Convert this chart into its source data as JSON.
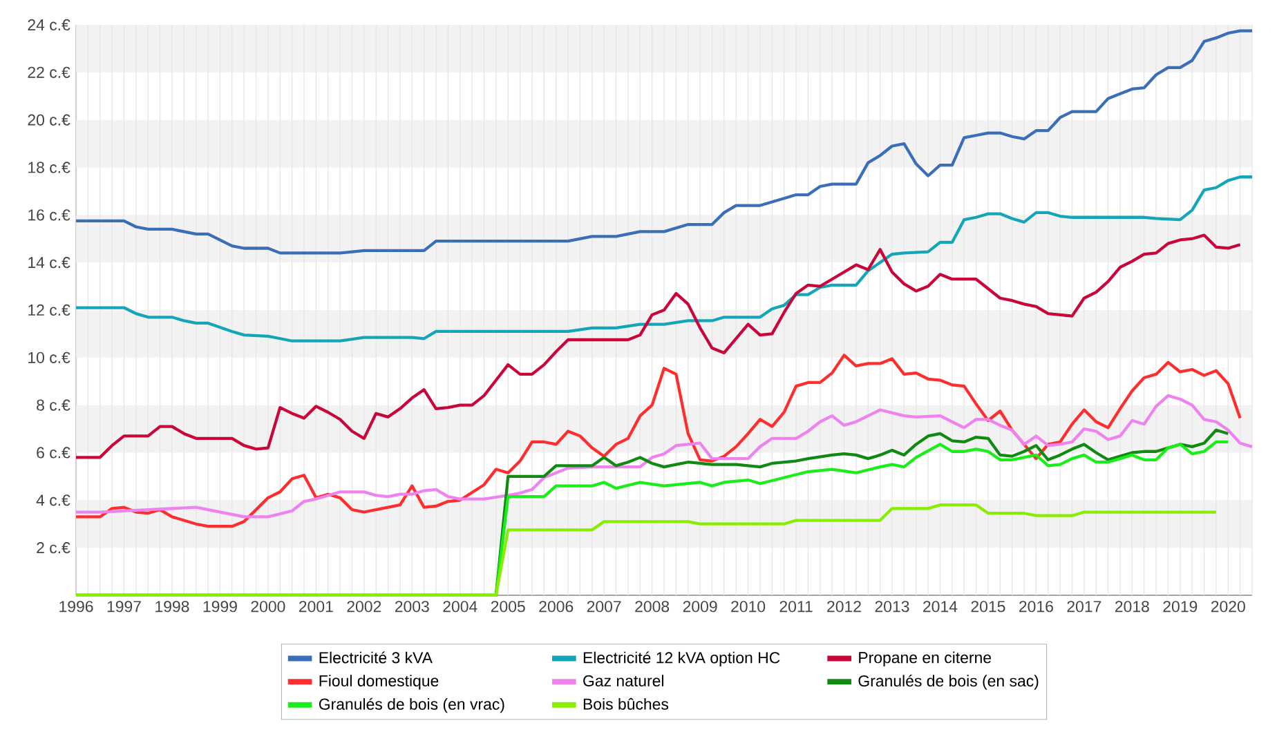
{
  "chart_data": {
    "type": "line",
    "xlim": [
      1996,
      2020.5
    ],
    "ylim": [
      0,
      24
    ],
    "grid": true,
    "legend": "bottom",
    "xticks": [
      1996,
      1997,
      1998,
      1999,
      2000,
      2001,
      2002,
      2003,
      2004,
      2005,
      2006,
      2007,
      2008,
      2009,
      2010,
      2011,
      2012,
      2013,
      2014,
      2015,
      2016,
      2017,
      2018,
      2019,
      2020
    ],
    "yticks": [
      {
        "value": 2,
        "label": "2 c.€"
      },
      {
        "value": 4,
        "label": "4 c.€"
      },
      {
        "value": 6,
        "label": "6 c.€"
      },
      {
        "value": 8,
        "label": "8 c.€"
      },
      {
        "value": 10,
        "label": "10 c.€"
      },
      {
        "value": 12,
        "label": "12 c.€"
      },
      {
        "value": 14,
        "label": "14 c.€"
      },
      {
        "value": 16,
        "label": "16 c.€"
      },
      {
        "value": 18,
        "label": "18 c.€"
      },
      {
        "value": 20,
        "label": "20 c.€"
      },
      {
        "value": 22,
        "label": "22 c.€"
      },
      {
        "value": 24,
        "label": "24 c.€"
      }
    ],
    "series": [
      {
        "name": "Electricité 3 kVA",
        "color": "#3a6fb8",
        "x": [
          1996,
          1997,
          1997.25,
          1997.5,
          1998,
          1998.25,
          1998.5,
          1998.75,
          1999.25,
          1999.5,
          2000,
          2000.25,
          2000.5,
          2001.5,
          2002,
          2003.25,
          2003.5,
          2006.25,
          2006.75,
          2007.25,
          2007.75,
          2008.25,
          2008.75,
          2009.25,
          2009.5,
          2009.75,
          2010.25,
          2010.75,
          2011,
          2011.25,
          2011.5,
          2011.75,
          2012.25,
          2012.5,
          2012.75,
          2013,
          2013.25,
          2013.5,
          2013.75,
          2014,
          2014.25,
          2014.5,
          2014.75,
          2015,
          2015.25,
          2015.5,
          2015.75,
          2016,
          2016.25,
          2016.5,
          2016.75,
          2017.25,
          2017.5,
          2017.75,
          2018,
          2018.25,
          2018.5,
          2018.75,
          2019,
          2019.25,
          2019.5,
          2019.75,
          2020,
          2020.25,
          2020.5
        ],
        "values": [
          15.75,
          15.75,
          15.5,
          15.4,
          15.4,
          15.3,
          15.2,
          15.2,
          14.7,
          14.6,
          14.6,
          14.4,
          14.4,
          14.4,
          14.5,
          14.5,
          14.9,
          14.9,
          15.1,
          15.1,
          15.3,
          15.3,
          15.6,
          15.6,
          16.1,
          16.4,
          16.4,
          16.7,
          16.85,
          16.85,
          17.2,
          17.3,
          17.3,
          18.2,
          18.5,
          18.9,
          19.0,
          18.15,
          17.65,
          18.1,
          18.1,
          19.25,
          19.35,
          19.45,
          19.45,
          19.3,
          19.2,
          19.55,
          19.55,
          20.1,
          20.35,
          20.35,
          20.9,
          21.1,
          21.3,
          21.35,
          21.9,
          22.2,
          22.2,
          22.5,
          23.3,
          23.45,
          23.65,
          23.75,
          23.75
        ]
      },
      {
        "name": "Electricité 12 kVA option HC",
        "color": "#14a6b8",
        "x": [
          1996,
          1997,
          1997.25,
          1997.5,
          1998,
          1998.25,
          1998.5,
          1998.75,
          1999.25,
          1999.5,
          2000,
          2000.25,
          2000.5,
          2001.5,
          2002,
          2003,
          2003.25,
          2003.5,
          2006.25,
          2006.75,
          2007.25,
          2007.75,
          2008.25,
          2008.75,
          2009.25,
          2009.5,
          2010.25,
          2010.5,
          2010.75,
          2011,
          2011.25,
          2011.5,
          2011.75,
          2012.25,
          2012.5,
          2012.75,
          2013,
          2013.25,
          2013.75,
          2014,
          2014.25,
          2014.5,
          2014.75,
          2015,
          2015.25,
          2015.5,
          2015.75,
          2016,
          2016.25,
          2016.5,
          2016.75,
          2018.25,
          2018.5,
          2019,
          2019.25,
          2019.5,
          2019.75,
          2020,
          2020.25,
          2020.5
        ],
        "values": [
          12.1,
          12.1,
          11.85,
          11.7,
          11.7,
          11.55,
          11.45,
          11.45,
          11.1,
          10.95,
          10.9,
          10.8,
          10.7,
          10.7,
          10.85,
          10.85,
          10.8,
          11.1,
          11.1,
          11.25,
          11.25,
          11.4,
          11.4,
          11.55,
          11.55,
          11.7,
          11.7,
          12.05,
          12.2,
          12.65,
          12.65,
          12.95,
          13.05,
          13.05,
          13.65,
          14.0,
          14.35,
          14.4,
          14.45,
          14.85,
          14.85,
          15.8,
          15.9,
          16.05,
          16.05,
          15.85,
          15.7,
          16.1,
          16.1,
          15.95,
          15.9,
          15.9,
          15.85,
          15.8,
          16.2,
          17.05,
          17.15,
          17.45,
          17.6,
          17.6
        ]
      },
      {
        "name": "Propane en citerne",
        "color": "#c8063a",
        "x": [
          1996,
          1996.5,
          1996.75,
          1997,
          1997.5,
          1997.75,
          1998,
          1998.25,
          1998.5,
          1999.25,
          1999.5,
          1999.75,
          2000,
          2000.25,
          2000.5,
          2000.75,
          2001,
          2001.25,
          2001.5,
          2001.75,
          2002,
          2002.25,
          2002.5,
          2002.75,
          2003,
          2003.25,
          2003.5,
          2003.75,
          2004,
          2004.25,
          2004.5,
          2004.75,
          2005,
          2005.25,
          2005.5,
          2005.75,
          2006,
          2006.25,
          2007.5,
          2007.75,
          2008,
          2008.25,
          2008.5,
          2008.75,
          2009,
          2009.25,
          2009.5,
          2009.75,
          2010,
          2010.25,
          2010.5,
          2010.75,
          2011,
          2011.25,
          2011.5,
          2011.75,
          2012.25,
          2012.5,
          2012.75,
          2013,
          2013.25,
          2013.5,
          2013.75,
          2014,
          2014.25,
          2014.75,
          2015,
          2015.25,
          2015.5,
          2015.75,
          2016,
          2016.25,
          2016.5,
          2016.75,
          2017,
          2017.25,
          2017.5,
          2017.75,
          2018,
          2018.25,
          2018.5,
          2018.75,
          2019,
          2019.25,
          2019.5,
          2019.75,
          2020,
          2020.25
        ],
        "values": [
          5.8,
          5.8,
          6.3,
          6.7,
          6.7,
          7.1,
          7.1,
          6.8,
          6.6,
          6.6,
          6.3,
          6.15,
          6.2,
          7.9,
          7.65,
          7.45,
          7.95,
          7.7,
          7.4,
          6.9,
          6.6,
          7.65,
          7.5,
          7.85,
          8.3,
          8.65,
          7.85,
          7.9,
          8.0,
          8.0,
          8.4,
          9.05,
          9.7,
          9.3,
          9.3,
          9.7,
          10.25,
          10.75,
          10.75,
          10.95,
          11.8,
          12.0,
          12.7,
          12.25,
          11.25,
          10.4,
          10.2,
          10.8,
          11.4,
          10.95,
          11.0,
          11.9,
          12.7,
          13.05,
          13.0,
          13.3,
          13.9,
          13.7,
          14.55,
          13.6,
          13.1,
          12.8,
          13.0,
          13.5,
          13.3,
          13.3,
          12.9,
          12.5,
          12.4,
          12.25,
          12.15,
          11.85,
          11.8,
          11.75,
          12.5,
          12.75,
          13.2,
          13.8,
          14.05,
          14.35,
          14.4,
          14.8,
          14.95,
          15.0,
          15.15,
          14.65,
          14.6,
          14.75
        ]
      },
      {
        "name": "Fioul domestique",
        "color": "#ff2e2e",
        "x": [
          1996,
          1996.5,
          1996.75,
          1997,
          1997.25,
          1997.5,
          1997.75,
          1998,
          1998.5,
          1998.75,
          1999.25,
          1999.5,
          1999.75,
          2000,
          2000.25,
          2000.5,
          2000.75,
          2001,
          2001.25,
          2001.5,
          2001.75,
          2002,
          2002.5,
          2002.75,
          2003,
          2003.25,
          2003.5,
          2003.75,
          2004,
          2004.5,
          2004.75,
          2005,
          2005.25,
          2005.5,
          2005.75,
          2006,
          2006.25,
          2006.5,
          2006.75,
          2007,
          2007.25,
          2007.5,
          2007.75,
          2008,
          2008.25,
          2008.5,
          2008.75,
          2009,
          2009.25,
          2009.5,
          2009.75,
          2010,
          2010.25,
          2010.5,
          2010.75,
          2011,
          2011.25,
          2011.5,
          2011.75,
          2012,
          2012.25,
          2012.5,
          2012.75,
          2013,
          2013.25,
          2013.5,
          2013.75,
          2014,
          2014.25,
          2014.5,
          2014.75,
          2015,
          2015.25,
          2015.5,
          2015.75,
          2016,
          2016.25,
          2016.5,
          2016.75,
          2017,
          2017.25,
          2017.5,
          2017.75,
          2018,
          2018.25,
          2018.5,
          2018.75,
          2019,
          2019.25,
          2019.5,
          2019.75,
          2020,
          2020.25
        ],
        "values": [
          3.3,
          3.3,
          3.65,
          3.7,
          3.5,
          3.45,
          3.6,
          3.3,
          3.0,
          2.9,
          2.9,
          3.1,
          3.6,
          4.1,
          4.35,
          4.9,
          5.05,
          4.1,
          4.25,
          4.1,
          3.6,
          3.5,
          3.7,
          3.8,
          4.6,
          3.7,
          3.75,
          3.95,
          4.0,
          4.65,
          5.3,
          5.15,
          5.65,
          6.45,
          6.45,
          6.35,
          6.9,
          6.7,
          6.2,
          5.85,
          6.35,
          6.6,
          7.55,
          8.0,
          9.55,
          9.3,
          6.8,
          5.7,
          5.65,
          5.85,
          6.25,
          6.8,
          7.4,
          7.1,
          7.7,
          8.8,
          8.95,
          8.95,
          9.35,
          10.1,
          9.65,
          9.75,
          9.75,
          9.95,
          9.3,
          9.35,
          9.1,
          9.05,
          8.85,
          8.8,
          8.05,
          7.35,
          7.75,
          6.95,
          6.35,
          5.75,
          6.35,
          6.45,
          7.2,
          7.8,
          7.3,
          7.05,
          7.85,
          8.6,
          9.15,
          9.3,
          9.8,
          9.4,
          9.5,
          9.25,
          9.45,
          8.9,
          7.45
        ]
      },
      {
        "name": "Gaz naturel",
        "color": "#ee82ee",
        "x": [
          1996,
          1996.5,
          1997,
          1997.5,
          1998.5,
          1999,
          1999.5,
          2000,
          2000.5,
          2000.75,
          2001,
          2001.25,
          2001.5,
          2002,
          2002.25,
          2002.5,
          2002.75,
          2003,
          2003.25,
          2003.5,
          2003.75,
          2004,
          2004.5,
          2005,
          2005.25,
          2005.5,
          2005.75,
          2006,
          2006.25,
          2006.75,
          2007.75,
          2008,
          2008.25,
          2008.5,
          2009,
          2009.25,
          2010,
          2010.25,
          2010.5,
          2011,
          2011.25,
          2011.5,
          2011.75,
          2012,
          2012.25,
          2012.5,
          2012.75,
          2013.25,
          2013.5,
          2014,
          2014.25,
          2014.5,
          2014.75,
          2015,
          2015.25,
          2015.5,
          2015.75,
          2016,
          2016.25,
          2016.5,
          2016.75,
          2017,
          2017.25,
          2017.5,
          2017.75,
          2018,
          2018.25,
          2018.5,
          2018.75,
          2019,
          2019.25,
          2019.5,
          2019.75,
          2020,
          2020.25,
          2020.5
        ],
        "values": [
          3.5,
          3.5,
          3.55,
          3.6,
          3.7,
          3.5,
          3.3,
          3.3,
          3.55,
          3.95,
          4.05,
          4.2,
          4.35,
          4.35,
          4.2,
          4.15,
          4.25,
          4.25,
          4.4,
          4.45,
          4.15,
          4.05,
          4.05,
          4.2,
          4.3,
          4.45,
          4.95,
          5.15,
          5.35,
          5.4,
          5.4,
          5.8,
          5.95,
          6.3,
          6.4,
          5.75,
          5.75,
          6.25,
          6.6,
          6.6,
          6.9,
          7.3,
          7.55,
          7.15,
          7.3,
          7.55,
          7.8,
          7.55,
          7.5,
          7.55,
          7.3,
          7.05,
          7.4,
          7.4,
          7.15,
          6.95,
          6.35,
          6.7,
          6.3,
          6.35,
          6.45,
          7.0,
          6.9,
          6.55,
          6.7,
          7.35,
          7.2,
          7.95,
          8.4,
          8.25,
          8.0,
          7.4,
          7.3,
          6.95,
          6.4,
          6.25
        ]
      },
      {
        "name": "Granulés de bois (en sac)",
        "color": "#108a10",
        "x": [
          1996,
          2004.75,
          2005,
          2005.75,
          2006,
          2006.75,
          2007,
          2007.25,
          2007.5,
          2007.75,
          2008,
          2008.25,
          2008.5,
          2008.75,
          2009.25,
          2009.75,
          2010.25,
          2010.5,
          2011,
          2011.25,
          2011.75,
          2012,
          2012.25,
          2012.5,
          2012.75,
          2013,
          2013.25,
          2013.5,
          2013.75,
          2014,
          2014.25,
          2014.5,
          2014.75,
          2015,
          2015.25,
          2015.5,
          2015.75,
          2016,
          2016.25,
          2016.5,
          2016.75,
          2017,
          2017.25,
          2017.5,
          2017.75,
          2018,
          2018.25,
          2018.5,
          2018.75,
          2019,
          2019.25,
          2019.5,
          2019.75,
          2020
        ],
        "values": [
          0,
          0,
          5.0,
          5.0,
          5.45,
          5.45,
          5.8,
          5.45,
          5.6,
          5.8,
          5.55,
          5.4,
          5.5,
          5.6,
          5.5,
          5.5,
          5.4,
          5.55,
          5.65,
          5.75,
          5.9,
          5.95,
          5.9,
          5.75,
          5.9,
          6.1,
          5.9,
          6.35,
          6.7,
          6.8,
          6.5,
          6.45,
          6.65,
          6.6,
          5.9,
          5.85,
          6.05,
          6.3,
          5.7,
          5.9,
          6.15,
          6.35,
          6.0,
          5.7,
          5.85,
          6.0,
          6.05,
          6.05,
          6.2,
          6.35,
          6.25,
          6.4,
          6.95,
          6.8
        ]
      },
      {
        "name": "Granulés de bois (en vrac)",
        "color": "#1aee1a",
        "x": [
          1996,
          2004.75,
          2005,
          2005.75,
          2006,
          2006.75,
          2007,
          2007.25,
          2007.75,
          2008.25,
          2009,
          2009.25,
          2009.5,
          2010,
          2010.25,
          2010.75,
          2011.25,
          2011.75,
          2012.25,
          2012.75,
          2013,
          2013.25,
          2013.5,
          2014,
          2014.25,
          2014.5,
          2014.75,
          2015,
          2015.25,
          2015.5,
          2016,
          2016.25,
          2016.5,
          2016.75,
          2017,
          2017.25,
          2017.5,
          2017.75,
          2018,
          2018.25,
          2018.5,
          2018.75,
          2019,
          2019.25,
          2019.5,
          2019.75,
          2020
        ],
        "values": [
          0,
          0,
          4.15,
          4.15,
          4.6,
          4.6,
          4.75,
          4.5,
          4.75,
          4.6,
          4.75,
          4.6,
          4.75,
          4.85,
          4.7,
          4.95,
          5.2,
          5.3,
          5.15,
          5.4,
          5.5,
          5.4,
          5.8,
          6.35,
          6.05,
          6.05,
          6.15,
          6.05,
          5.7,
          5.7,
          5.9,
          5.45,
          5.5,
          5.75,
          5.9,
          5.6,
          5.6,
          5.75,
          5.9,
          5.7,
          5.7,
          6.2,
          6.35,
          5.95,
          6.05,
          6.45,
          6.45
        ]
      },
      {
        "name": "Bois bûches",
        "color": "#88ee00",
        "x": [
          1996,
          2004.75,
          2005,
          2006.75,
          2007,
          2008.75,
          2009,
          2010.75,
          2011,
          2012.75,
          2013,
          2013.75,
          2014,
          2014.75,
          2015,
          2015.75,
          2016,
          2016.75,
          2017,
          2019.75
        ],
        "values": [
          0,
          0,
          2.75,
          2.75,
          3.1,
          3.1,
          3.0,
          3.0,
          3.15,
          3.15,
          3.65,
          3.65,
          3.8,
          3.8,
          3.45,
          3.45,
          3.35,
          3.35,
          3.5,
          3.5
        ]
      }
    ]
  }
}
